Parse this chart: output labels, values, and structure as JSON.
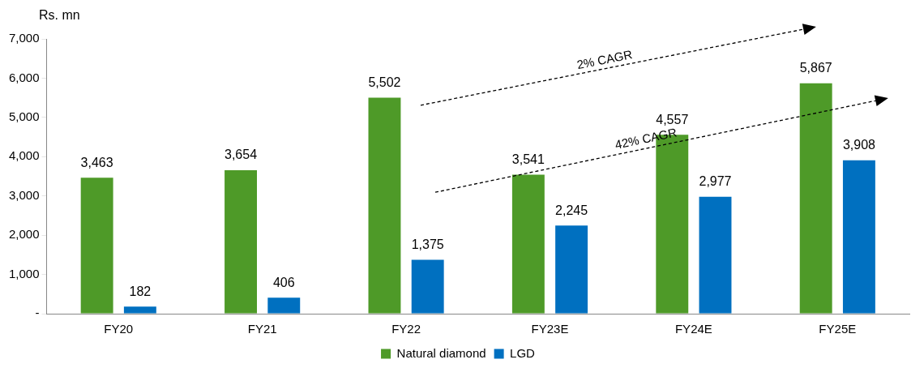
{
  "chart_data": {
    "type": "bar",
    "ylabel": "Rs. mn",
    "categories": [
      "FY20",
      "FY21",
      "FY22",
      "FY23E",
      "FY24E",
      "FY25E"
    ],
    "series": [
      {
        "name": "Natural diamond",
        "color": "#4e9a28",
        "values": [
          3463,
          3654,
          5502,
          3541,
          4557,
          5867
        ],
        "value_labels": [
          "3,463",
          "3,654",
          "5,502",
          "3,541",
          "4,557",
          "5,867"
        ]
      },
      {
        "name": "LGD",
        "color": "#0070c0",
        "values": [
          182,
          406,
          1375,
          2245,
          2977,
          3908
        ],
        "value_labels": [
          "182",
          "406",
          "1,375",
          "2,245",
          "2,977",
          "3,908"
        ]
      }
    ],
    "ylim": [
      0,
      7000
    ],
    "yticks": [
      {
        "value": 0,
        "label": "-"
      },
      {
        "value": 1000,
        "label": "1,000"
      },
      {
        "value": 2000,
        "label": "2,000"
      },
      {
        "value": 3000,
        "label": "3,000"
      },
      {
        "value": 4000,
        "label": "4,000"
      },
      {
        "value": 5000,
        "label": "5,000"
      },
      {
        "value": 6000,
        "label": "6,000"
      },
      {
        "value": 7000,
        "label": "7,000"
      }
    ],
    "grid": false,
    "legend": "bottom",
    "annotations": [
      "2% CAGR",
      "42% CAGR"
    ]
  }
}
